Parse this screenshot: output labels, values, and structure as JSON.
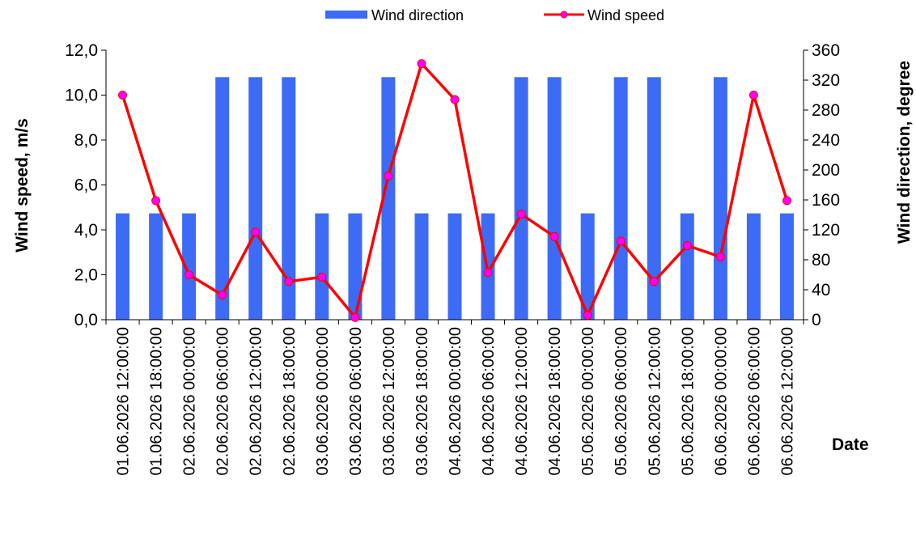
{
  "chart_data": {
    "type": "bar",
    "categories": [
      "01.06.2026 12:00:00",
      "01.06.2026 18:00:00",
      "02.06.2026 00:00:00",
      "02.06.2026 06:00:00",
      "02.06.2026 12:00:00",
      "02.06.2026 18:00:00",
      "03.06.2026 00:00:00",
      "03.06.2026 06:00:00",
      "03.06.2026 12:00:00",
      "03.06.2026 18:00:00",
      "04.06.2026 00:00:00",
      "04.06.2026 06:00:00",
      "04.06.2026 12:00:00",
      "04.06.2026 18:00:00",
      "05.06.2026 00:00:00",
      "05.06.2026 06:00:00",
      "05.06.2026 12:00:00",
      "05.06.2026 18:00:00",
      "06.06.2026 00:00:00",
      "06.06.2026 06:00:00",
      "06.06.2026 12:00:00"
    ],
    "series": [
      {
        "name": "Wind direction",
        "type": "bar",
        "axis": "right",
        "color": "#3d6bf5",
        "values": [
          142,
          142,
          142,
          324,
          324,
          324,
          142,
          142,
          324,
          142,
          142,
          142,
          324,
          324,
          142,
          324,
          324,
          142,
          324,
          142,
          142
        ]
      },
      {
        "name": "Wind speed",
        "type": "line",
        "axis": "left",
        "color": "#ff0000",
        "marker_color": "#ff00ff",
        "values": [
          10.0,
          5.3,
          2.0,
          1.1,
          3.9,
          1.7,
          1.9,
          0.1,
          6.4,
          11.4,
          9.8,
          2.1,
          4.7,
          3.7,
          0.2,
          3.5,
          1.7,
          3.3,
          2.8,
          10.0,
          5.3
        ]
      }
    ],
    "xlabel": "Date",
    "ylabel": "Wind speed, m/s",
    "y2label": "Wind direction, degree",
    "ylim": [
      0,
      12
    ],
    "y2lim": [
      0,
      360
    ],
    "yticks": [
      "0,0",
      "2,0",
      "4,0",
      "6,0",
      "8,0",
      "10,0",
      "12,0"
    ],
    "y2ticks": [
      "0",
      "40",
      "80",
      "120",
      "160",
      "200",
      "240",
      "280",
      "320",
      "360"
    ],
    "grid": false,
    "legend": "top"
  }
}
